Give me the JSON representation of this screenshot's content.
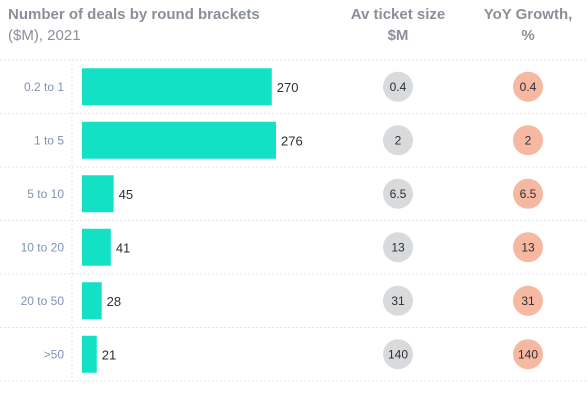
{
  "chart_data": {
    "type": "bar",
    "title": "Number of deals by round brackets",
    "subtitle": "($M), 2021",
    "categories": [
      "0.2 to 1",
      "1 to 5",
      "5 to 10",
      "10 to 20",
      "20 to 50",
      ">50"
    ],
    "series": [
      {
        "name": "Number of deals",
        "values": [
          270,
          276,
          45,
          41,
          28,
          21
        ]
      }
    ],
    "columns": [
      {
        "header": [
          "Av ticket size",
          "$M"
        ],
        "values": [
          "0.4",
          "2",
          "6.5",
          "13",
          "31",
          "140"
        ]
      },
      {
        "header": [
          "YoY Growth,",
          "%"
        ],
        "values": [
          "0.4",
          "2",
          "6.5",
          "13",
          "31",
          "140"
        ]
      }
    ],
    "colors": {
      "bar": "#13e1c6",
      "ticket_circle": "#d9dadb",
      "growth_circle": "#f7b8a2",
      "grid": "#e3e5e8"
    },
    "grid": true
  }
}
